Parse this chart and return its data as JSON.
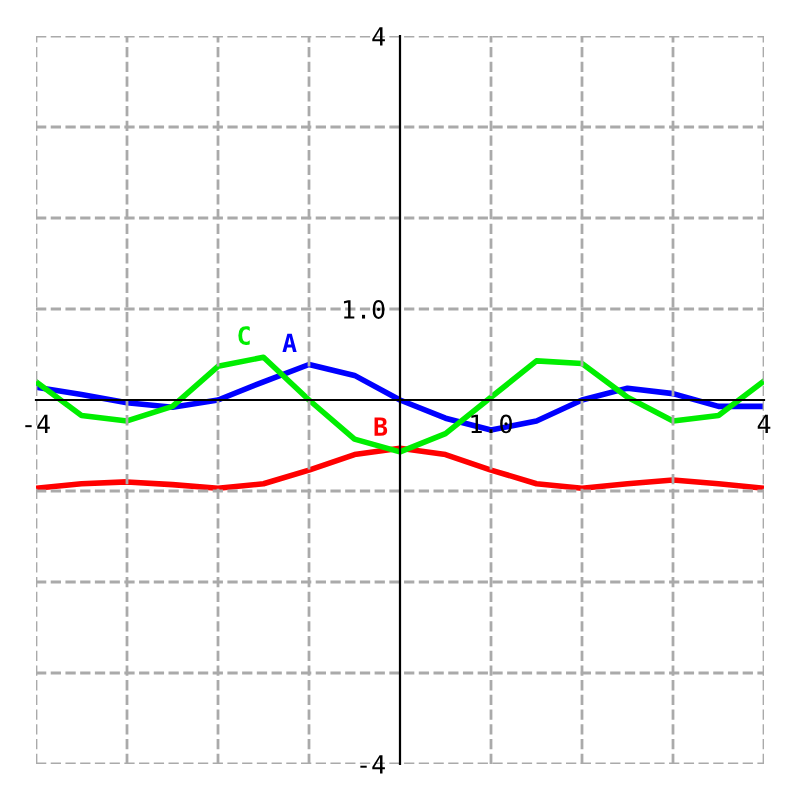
{
  "chart_data": {
    "type": "line",
    "xlim": [
      -4,
      4
    ],
    "ylim": [
      -4,
      4
    ],
    "xticks": [
      {
        "value": -4,
        "label": "-4"
      },
      {
        "value": -3,
        "label": null
      },
      {
        "value": -2,
        "label": null
      },
      {
        "value": -1,
        "label": null
      },
      {
        "value": 1,
        "label": "1.0"
      },
      {
        "value": 2,
        "label": null
      },
      {
        "value": 3,
        "label": null
      },
      {
        "value": 4,
        "label": "4"
      }
    ],
    "yticks": [
      {
        "value": -4,
        "label": "-4"
      },
      {
        "value": -3,
        "label": null
      },
      {
        "value": -2,
        "label": null
      },
      {
        "value": -1,
        "label": null
      },
      {
        "value": 1,
        "label": "1.0"
      },
      {
        "value": 2,
        "label": null
      },
      {
        "value": 3,
        "label": null
      },
      {
        "value": 4,
        "label": "4"
      }
    ],
    "grid": true,
    "legend": false,
    "marker": "none",
    "line_style": "solid",
    "x": [
      -4,
      -3.5,
      -3,
      -2.5,
      -2,
      -1.5,
      -1,
      -0.5,
      0,
      0.5,
      1,
      1.5,
      2,
      2.5,
      3,
      3.5,
      4
    ],
    "series": [
      {
        "name": "A",
        "color": "#0000ff",
        "values": [
          0.14,
          0.06,
          -0.03,
          -0.08,
          0,
          0.2,
          0.39,
          0.27,
          0,
          -0.2,
          -0.33,
          -0.23,
          0,
          0.13,
          0.07,
          -0.07,
          -0.07
        ]
      },
      {
        "name": "B",
        "color": "#ff0000",
        "values": [
          -0.97,
          -0.92,
          -0.9,
          -0.93,
          -0.97,
          -0.92,
          -0.77,
          -0.6,
          -0.53,
          -0.6,
          -0.77,
          -0.92,
          -0.97,
          -0.92,
          -0.88,
          -0.92,
          -0.97
        ]
      },
      {
        "name": "C",
        "color": "#00ee00",
        "values": [
          0.2,
          -0.17,
          -0.23,
          -0.07,
          0.37,
          0.47,
          0,
          -0.43,
          -0.57,
          -0.37,
          0.03,
          0.43,
          0.4,
          0.03,
          -0.23,
          -0.17,
          0.21
        ]
      }
    ]
  }
}
